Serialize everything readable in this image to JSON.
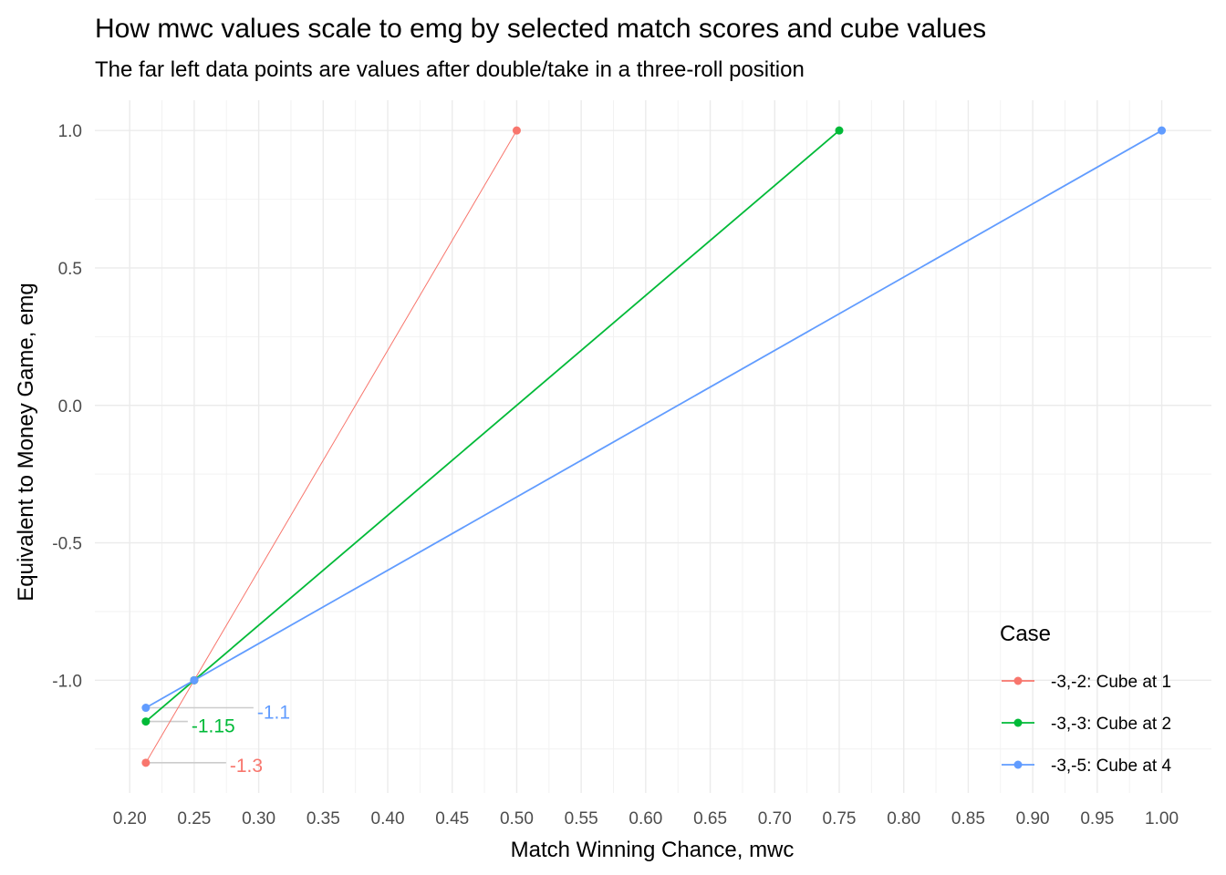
{
  "chart_data": {
    "type": "line",
    "title": "How mwc values scale to emg by selected match scores and cube values",
    "subtitle": "The far left data points are values after double/take in a three-roll position",
    "xlabel": "Match Winning Chance, mwc",
    "ylabel": "Equivalent to Money Game, emg",
    "xlim": [
      0.2,
      1.0
    ],
    "ylim": [
      -1.3,
      1.0
    ],
    "x_ticks": [
      0.2,
      0.25,
      0.3,
      0.35,
      0.4,
      0.45,
      0.5,
      0.55,
      0.6,
      0.65,
      0.7,
      0.75,
      0.8,
      0.85,
      0.9,
      0.95,
      1.0
    ],
    "x_tick_labels": [
      "0.20",
      "0.25",
      "0.30",
      "0.35",
      "0.40",
      "0.45",
      "0.50",
      "0.55",
      "0.60",
      "0.65",
      "0.70",
      "0.75",
      "0.80",
      "0.85",
      "0.90",
      "0.95",
      "1.00"
    ],
    "y_ticks": [
      -1.0,
      -0.5,
      0.0,
      0.5,
      1.0
    ],
    "y_tick_labels": [
      "-1.0",
      "-0.5",
      "0.0",
      "0.5",
      "1.0"
    ],
    "grid": true,
    "legend": {
      "title": "Case",
      "placement": "bottom-right"
    },
    "series": [
      {
        "name": "-3,-2: Cube at 1",
        "color": "#F8766D",
        "points": [
          {
            "x": 0.2125,
            "y": -1.3
          },
          {
            "x": 0.25,
            "y": -1.0
          },
          {
            "x": 0.5,
            "y": 1.0
          }
        ],
        "annotation": "-1.3"
      },
      {
        "name": "-3,-3: Cube at 2",
        "color": "#00BA38",
        "points": [
          {
            "x": 0.2125,
            "y": -1.15
          },
          {
            "x": 0.25,
            "y": -1.0
          },
          {
            "x": 0.75,
            "y": 1.0
          }
        ],
        "annotation": "-1.15"
      },
      {
        "name": "-3,-5: Cube at 4",
        "color": "#619CFF",
        "points": [
          {
            "x": 0.2125,
            "y": -1.1
          },
          {
            "x": 0.25,
            "y": -1.0
          },
          {
            "x": 1.0,
            "y": 1.0
          }
        ],
        "annotation": "-1.1"
      }
    ]
  }
}
